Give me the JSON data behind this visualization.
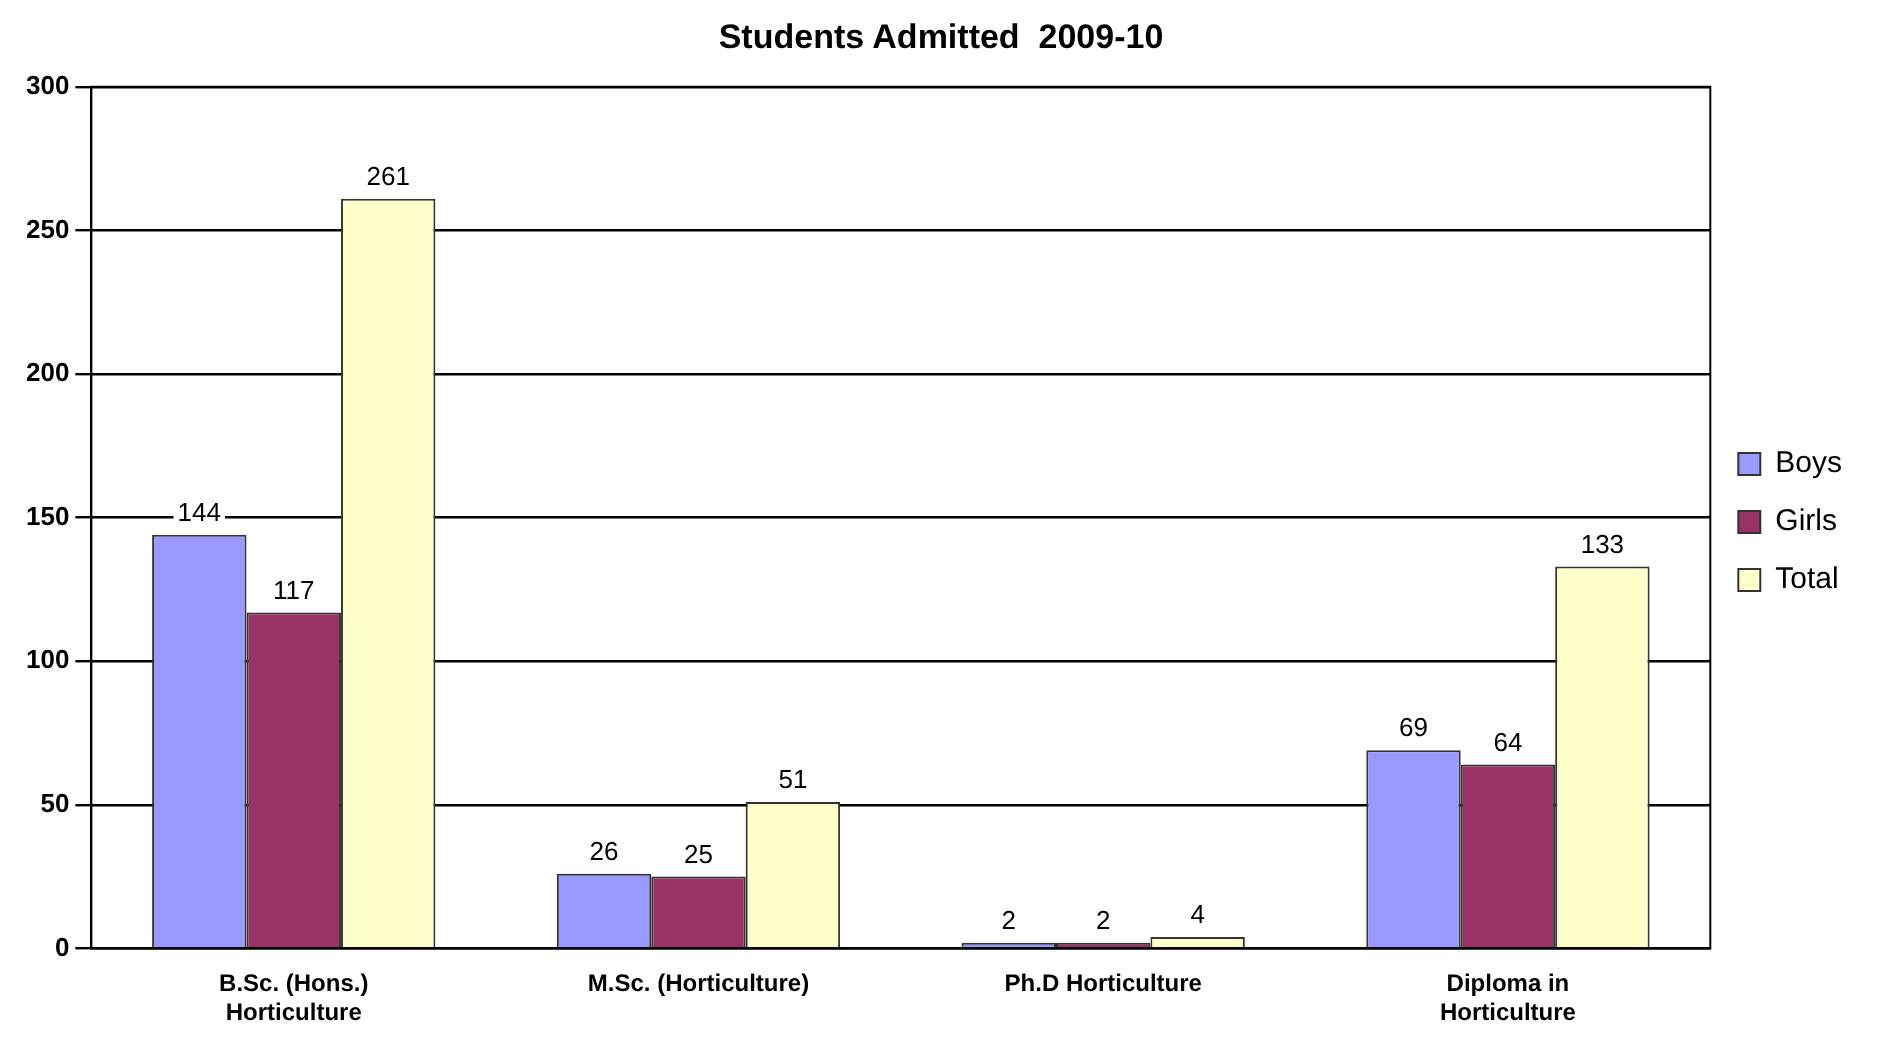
{
  "chart_data": {
    "type": "bar",
    "title": "Students Admitted  2009-10",
    "categories": [
      "B.Sc. (Hons.) Horticulture",
      "M.Sc. (Horticulture)",
      "Ph.D Horticulture",
      "Diploma in Horticulture"
    ],
    "series": [
      {
        "name": "Boys",
        "color": "#9999ff",
        "values": [
          144,
          26,
          2,
          69
        ]
      },
      {
        "name": "Girls",
        "color": "#993366",
        "values": [
          117,
          25,
          2,
          64
        ]
      },
      {
        "name": "Total",
        "color": "#ffffcc",
        "values": [
          261,
          51,
          4,
          133
        ]
      }
    ],
    "ylim": [
      0,
      300
    ],
    "yticks": [
      0,
      50,
      100,
      150,
      200,
      250,
      300
    ],
    "grid": "y",
    "legend": "right",
    "data_labels": true
  }
}
